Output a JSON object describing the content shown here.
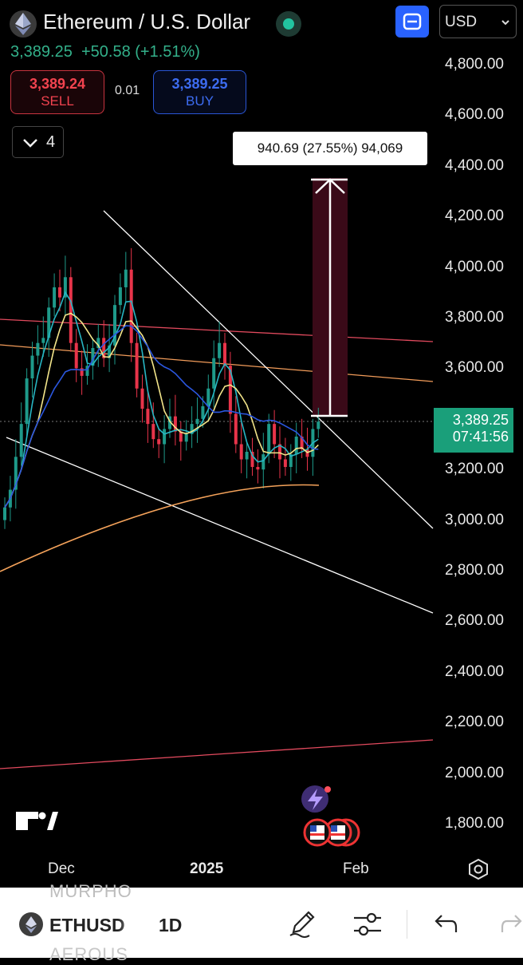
{
  "header": {
    "title": "Ethereum / U.S. Dollar",
    "currency": "USD",
    "price_line": "3,389.25  +50.58 (+1.51%)"
  },
  "trade": {
    "sell_price": "3,389.24",
    "sell_label": "SELL",
    "spread": "0.01",
    "buy_price": "3,389.25",
    "buy_label": "BUY"
  },
  "indicators": {
    "count": "4"
  },
  "chart": {
    "y_ticks": [
      "4,800.00",
      "4,600.00",
      "4,400.00",
      "4,200.00",
      "4,000.00",
      "3,800.00",
      "3,600.00",
      "3,400.00",
      "3,200.00",
      "3,000.00",
      "2,800.00",
      "2,600.00",
      "2,400.00",
      "2,200.00",
      "2,000.00",
      "1,800.00"
    ],
    "x_ticks": [
      "Dec",
      "2025",
      "Feb"
    ],
    "last_price": "3,389.25",
    "countdown": "07:41:56",
    "measure_label": "940.69 (27.55%) 94,069",
    "colors": {
      "up": "#1e9a8a",
      "down": "#e8344a",
      "ema_fast": "#27b6c4",
      "ema_mid": "#f3e58a",
      "ema_slow": "#2b57e0",
      "ema_long": "#f4a25a"
    }
  },
  "bottom": {
    "symbol": "ETHUSD",
    "interval": "1D",
    "ghost_top": "MURPHO",
    "ghost_bottom": "AEROUS"
  },
  "icons": [
    "ethereum-icon",
    "live-status-icon",
    "fullscreen-icon",
    "chevron-down-icon",
    "tradingview-logo",
    "settings-gear-icon",
    "pencil-icon",
    "sliders-icon",
    "undo-icon",
    "redo-icon"
  ]
}
